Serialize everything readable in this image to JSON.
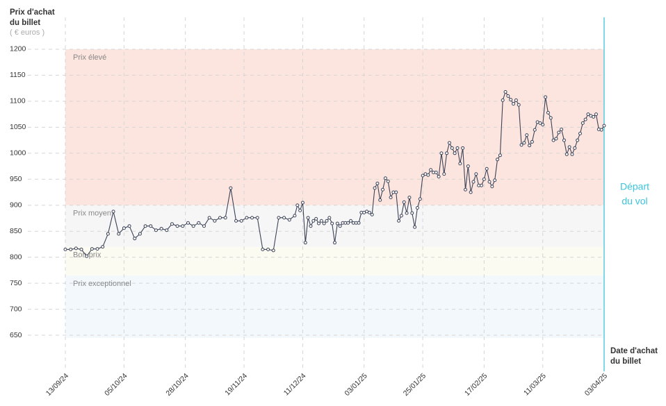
{
  "chart_data": {
    "type": "line",
    "y_title": [
      "Prix d'achat",
      "du billet"
    ],
    "y_unit": "( € euros )",
    "x_title": [
      "Date d'achat",
      "du billet"
    ],
    "ylim": [
      600,
      1250
    ],
    "yticks": [
      650,
      700,
      750,
      800,
      850,
      900,
      950,
      1000,
      1050,
      1100,
      1150,
      1200
    ],
    "xlim": [
      "13/09/24",
      "03/04/25"
    ],
    "xticks": [
      "13/09/24",
      "05/10/24",
      "28/10/24",
      "19/11/24",
      "11/12/24",
      "03/01/25",
      "25/01/25",
      "17/02/25",
      "11/03/25",
      "03/04/25"
    ],
    "grid": true,
    "bands": [
      {
        "name": "Prix élevé",
        "from": 900,
        "to": 1200,
        "color": "#fde5df"
      },
      {
        "name": "Prix moyen",
        "from": 820,
        "to": 900,
        "color": "#f6f6f6"
      },
      {
        "name": "Bon prix",
        "from": 765,
        "to": 820,
        "color": "#fbfbf1"
      },
      {
        "name": "Prix exceptionnel",
        "from": 645,
        "to": 765,
        "color": "#f2f8fc"
      }
    ],
    "departure": {
      "date": "03/04/25",
      "label": [
        "Départ",
        "du vol"
      ],
      "color": "#3cc4dc"
    },
    "series": [
      {
        "color": "#3b4256",
        "x": [
          "13/09/24",
          "15/09/24",
          "17/09/24",
          "19/09/24",
          "21/09/24",
          "23/09/24",
          "25/09/24",
          "27/09/24",
          "29/09/24",
          "01/10/24",
          "03/10/24",
          "05/10/24",
          "07/10/24",
          "09/10/24",
          "11/10/24",
          "13/10/24",
          "15/10/24",
          "17/10/24",
          "19/10/24",
          "21/10/24",
          "23/10/24",
          "25/10/24",
          "27/10/24",
          "29/10/24",
          "31/10/24",
          "02/11/24",
          "04/11/24",
          "06/11/24",
          "08/11/24",
          "10/11/24",
          "12/11/24",
          "14/11/24",
          "16/11/24",
          "18/11/24",
          "20/11/24",
          "22/11/24",
          "24/11/24",
          "26/11/24",
          "28/11/24",
          "30/11/24",
          "02/12/24",
          "04/12/24",
          "06/12/24",
          "08/12/24",
          "09/12/24",
          "10/12/24",
          "11/12/24",
          "12/12/24",
          "13/12/24",
          "14/12/24",
          "15/12/24",
          "16/12/24",
          "17/12/24",
          "18/12/24",
          "19/12/24",
          "20/12/24",
          "21/12/24",
          "22/12/24",
          "23/12/24",
          "24/12/24",
          "25/12/24",
          "26/12/24",
          "27/12/24",
          "28/12/24",
          "29/12/24",
          "30/12/24",
          "31/12/24",
          "01/01/25",
          "02/01/25",
          "03/01/25",
          "04/01/25",
          "05/01/25",
          "06/01/25",
          "07/01/25",
          "08/01/25",
          "09/01/25",
          "10/01/25",
          "11/01/25",
          "12/01/25",
          "13/01/25",
          "14/01/25",
          "15/01/25",
          "16/01/25",
          "17/01/25",
          "18/01/25",
          "19/01/25",
          "20/01/25",
          "21/01/25",
          "22/01/25",
          "23/01/25",
          "24/01/25",
          "25/01/25",
          "26/01/25",
          "27/01/25",
          "28/01/25",
          "29/01/25",
          "30/01/25",
          "31/01/25",
          "01/02/25",
          "02/02/25",
          "03/02/25",
          "04/02/25",
          "05/02/25",
          "06/02/25",
          "07/02/25",
          "08/02/25",
          "09/02/25",
          "10/02/25",
          "11/02/25",
          "12/02/25",
          "13/02/25",
          "14/02/25",
          "15/02/25",
          "16/02/25",
          "17/02/25",
          "18/02/25",
          "19/02/25",
          "20/02/25",
          "21/02/25",
          "22/02/25",
          "23/02/25",
          "24/02/25",
          "25/02/25",
          "26/02/25",
          "27/02/25",
          "28/02/25",
          "01/03/25",
          "02/03/25",
          "03/03/25",
          "04/03/25",
          "05/03/25",
          "06/03/25",
          "07/03/25",
          "08/03/25",
          "09/03/25",
          "10/03/25",
          "11/03/25",
          "12/03/25",
          "13/03/25",
          "14/03/25",
          "15/03/25",
          "16/03/25",
          "17/03/25",
          "18/03/25",
          "19/03/25",
          "20/03/25",
          "21/03/25",
          "22/03/25",
          "23/03/25",
          "24/03/25",
          "25/03/25",
          "26/03/25",
          "27/03/25",
          "28/03/25",
          "29/03/25",
          "30/03/25",
          "31/03/25",
          "01/04/25",
          "02/04/25",
          "03/04/25"
        ],
        "values": [
          815,
          815,
          817,
          815,
          802,
          816,
          816,
          820,
          845,
          888,
          845,
          856,
          860,
          836,
          845,
          860,
          860,
          852,
          855,
          852,
          864,
          860,
          860,
          866,
          860,
          866,
          860,
          876,
          870,
          876,
          876,
          933,
          870,
          870,
          876,
          876,
          876,
          815,
          815,
          813,
          876,
          876,
          872,
          880,
          900,
          890,
          905,
          828,
          876,
          860,
          870,
          874,
          865,
          870,
          865,
          870,
          876,
          865,
          828,
          865,
          860,
          866,
          866,
          866,
          870,
          866,
          866,
          866,
          886,
          886,
          888,
          886,
          882,
          933,
          942,
          910,
          930,
          952,
          946,
          915,
          925,
          925,
          870,
          880,
          906,
          885,
          915,
          885,
          858,
          895,
          912,
          957,
          960,
          958,
          968,
          963,
          963,
          955,
          1000,
          960,
          1000,
          1020,
          1010,
          1000,
          1010,
          980,
          1010,
          930,
          975,
          925,
          945,
          960,
          938,
          938,
          950,
          970,
          945,
          936,
          948,
          988,
          996,
          1102,
          1118,
          1110,
          1103,
          1095,
          1102,
          1093,
          1016,
          1020,
          1035,
          1015,
          1022,
          1045,
          1060,
          1058,
          1055,
          1108,
          1078,
          1068,
          1025,
          1028,
          1040,
          1046,
          1025,
          998,
          1012,
          998,
          1010,
          1025,
          1038,
          1058,
          1065,
          1075,
          1072,
          1070,
          1075,
          1046,
          1045,
          1053
        ]
      }
    ]
  }
}
